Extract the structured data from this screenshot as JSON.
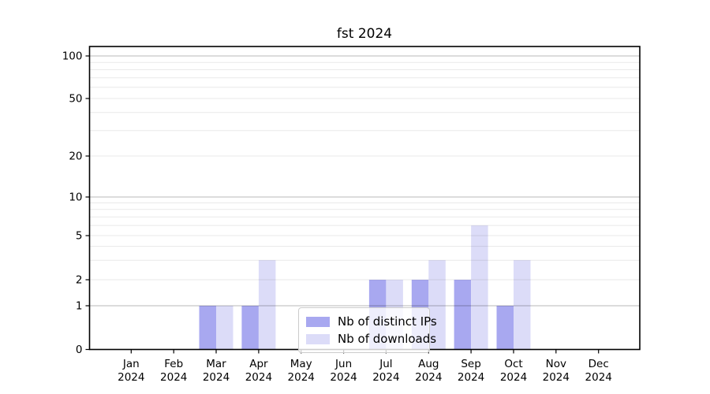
{
  "chart_data": {
    "type": "bar",
    "title": "fst 2024",
    "categories": [
      [
        "Jan",
        "2024"
      ],
      [
        "Feb",
        "2024"
      ],
      [
        "Mar",
        "2024"
      ],
      [
        "Apr",
        "2024"
      ],
      [
        "May",
        "2024"
      ],
      [
        "Jun",
        "2024"
      ],
      [
        "Jul",
        "2024"
      ],
      [
        "Aug",
        "2024"
      ],
      [
        "Sep",
        "2024"
      ],
      [
        "Oct",
        "2024"
      ],
      [
        "Nov",
        "2024"
      ],
      [
        "Dec",
        "2024"
      ]
    ],
    "series": [
      {
        "name": "Nb of distinct IPs",
        "color": "#a8a8f0",
        "values": [
          0,
          0,
          1,
          1,
          0,
          0,
          2,
          2,
          2,
          1,
          0,
          0
        ]
      },
      {
        "name": "Nb of downloads",
        "color": "#dcdcf8",
        "values": [
          0,
          0,
          1,
          3,
          0,
          0,
          2,
          3,
          6,
          3,
          0,
          0
        ]
      }
    ],
    "y_axis": {
      "scale": "log-like",
      "ticks": [
        0,
        1,
        2,
        5,
        10,
        20,
        50,
        100
      ],
      "minor_ticks": [
        3,
        4,
        6,
        7,
        8,
        9,
        30,
        40,
        60,
        70,
        80,
        90
      ],
      "range": [
        0,
        100
      ]
    },
    "xlabel": "",
    "ylabel": "",
    "grid": "on",
    "legend_position": "bottom-center"
  }
}
